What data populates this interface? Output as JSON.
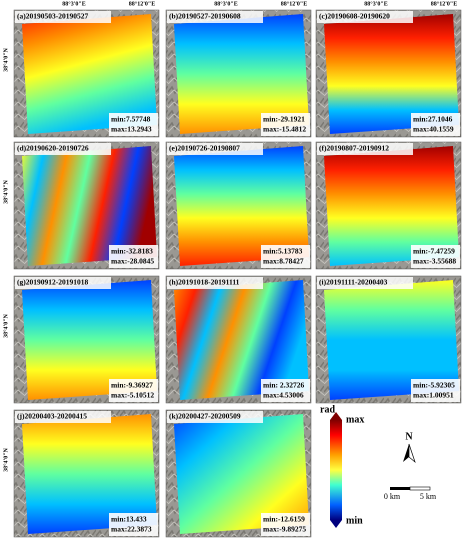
{
  "top_labels": [
    "88°3'0\"E",
    "88°12'0\"E",
    "88°3'0\"E",
    "88°12'0\"E",
    "88°3'0\"E",
    "88°12'0\"E"
  ],
  "side_labels": [
    "38°4'0\"N",
    "38°4'0\"N",
    "38°4'0\"N",
    "38°4'0\"N"
  ],
  "panels": [
    {
      "label": "(a)20190503-20190527",
      "min": "min:7.57748",
      "max": "max:13.2943"
    },
    {
      "label": "(b)20190527-20190608",
      "min": "min:-29.1921",
      "max": "max:-15.4812"
    },
    {
      "label": "(c)20190608-20190620",
      "min": "min:27.1046",
      "max": "max:40.1559"
    },
    {
      "label": "(d)20190620-20190726",
      "min": "min:-32.8183",
      "max": "max:-28.0845"
    },
    {
      "label": "(e)20190726-20190807",
      "min": "min:5.13783",
      "max": "max:8.78427"
    },
    {
      "label": "(f)20190807-20190912",
      "min": "min:-7.47259",
      "max": "max:-3.55688"
    },
    {
      "label": "(g)20190912-20191018",
      "min": "min:-9.36927",
      "max": "max:-5.10512"
    },
    {
      "label": "(h)20191018-20191111",
      "min": "min: 2.32726",
      "max": "max:4.53006"
    },
    {
      "label": "(i)20191111-20200403",
      "min": "min:-5.92305",
      "max": "max:1.00951"
    },
    {
      "label": "(j)20200403-20200415",
      "min": "min:13.433",
      "max": "max:22.3873"
    },
    {
      "label": "(k)20200427-20200509",
      "min": "min:-12.6159",
      "max": "max:-9.89275"
    }
  ],
  "colorbar": {
    "title": "rad",
    "max": "max",
    "min": "min"
  },
  "north": "N",
  "scale": [
    "0 km",
    "5 km"
  ]
}
